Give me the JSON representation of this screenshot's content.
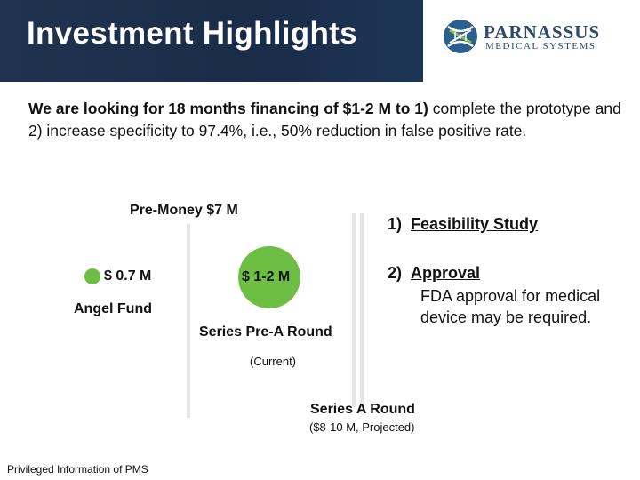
{
  "header": {
    "title": "Investment Highlights"
  },
  "logo": {
    "line1": "PARNASSUS",
    "line2": "MEDICAL SYSTEMS"
  },
  "intro": {
    "bold": "We are looking for 18 months financing of $1-2 M to 1)",
    "rest": " complete the prototype and  2) increase specificity to 97.4%, i.e., 50% reduction in false positive rate."
  },
  "timeline": {
    "pre_money": "Pre-Money $7 M",
    "angel": {
      "amount": "$ 0.7 M",
      "label": "Angel Fund"
    },
    "pre_a": {
      "amount": "$ 1-2 M",
      "label": "Series Pre-A Round",
      "note": "(Current)"
    },
    "series_a": {
      "label": "Series A Round",
      "note": "($8-10 M, Projected)"
    }
  },
  "steps": [
    {
      "num": "1)",
      "title": "Feasibility Study"
    },
    {
      "num": "2)",
      "title": "Approval",
      "desc": "FDA approval for medical device may be required."
    }
  ],
  "footer": {
    "text": "Privileged Information of PMS"
  },
  "colors": {
    "header_bg": "#1f3350",
    "green": "#6dbf44",
    "logo_blue": "#2b4a6e"
  }
}
